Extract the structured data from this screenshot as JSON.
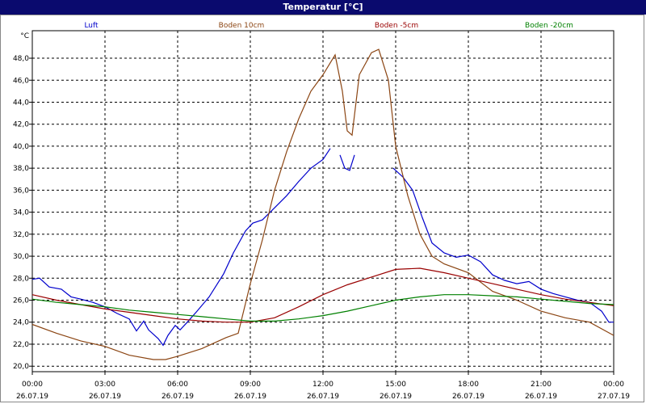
{
  "title": "Temperatur [°C]",
  "chart_data": {
    "type": "line",
    "unit_label": "°C",
    "ylim": [
      19.5,
      50.5
    ],
    "y_ticks": [
      "20,0",
      "22,0",
      "24,0",
      "26,0",
      "28,0",
      "30,0",
      "32,0",
      "34,0",
      "36,0",
      "38,0",
      "40,0",
      "42,0",
      "44,0",
      "46,0",
      "48,0"
    ],
    "y_tick_values": [
      20,
      22,
      24,
      26,
      28,
      30,
      32,
      34,
      36,
      38,
      40,
      42,
      44,
      46,
      48
    ],
    "x_range_hours": [
      0,
      24
    ],
    "x_ticks": [
      {
        "time": "00:00",
        "date": "26.07.19",
        "h": 0
      },
      {
        "time": "03:00",
        "date": "26.07.19",
        "h": 3
      },
      {
        "time": "06:00",
        "date": "26.07.19",
        "h": 6
      },
      {
        "time": "09:00",
        "date": "26.07.19",
        "h": 9
      },
      {
        "time": "12:00",
        "date": "26.07.19",
        "h": 12
      },
      {
        "time": "15:00",
        "date": "26.07.19",
        "h": 15
      },
      {
        "time": "18:00",
        "date": "26.07.19",
        "h": 18
      },
      {
        "time": "21:00",
        "date": "26.07.19",
        "h": 21
      },
      {
        "time": "00:00",
        "date": "27.07.19",
        "h": 24
      }
    ],
    "grid": true,
    "series": [
      {
        "name": "Luft",
        "color": "#0000cc",
        "segments": [
          [
            [
              0,
              27.9
            ],
            [
              0.3,
              28.0
            ],
            [
              0.7,
              27.2
            ],
            [
              1.2,
              27.0
            ],
            [
              1.6,
              26.3
            ],
            [
              2.0,
              26.1
            ],
            [
              2.5,
              25.8
            ],
            [
              3.0,
              25.4
            ],
            [
              3.5,
              24.8
            ],
            [
              4.0,
              24.3
            ],
            [
              4.3,
              23.2
            ],
            [
              4.6,
              24.1
            ],
            [
              4.8,
              23.3
            ],
            [
              5.2,
              22.5
            ],
            [
              5.4,
              21.9
            ],
            [
              5.6,
              22.8
            ],
            [
              5.9,
              23.7
            ],
            [
              6.1,
              23.3
            ],
            [
              6.4,
              24.0
            ],
            [
              6.8,
              25.0
            ],
            [
              7.3,
              26.3
            ],
            [
              7.9,
              28.4
            ],
            [
              8.3,
              30.3
            ],
            [
              8.8,
              32.3
            ],
            [
              9.1,
              33.0
            ],
            [
              9.5,
              33.3
            ],
            [
              10.0,
              34.4
            ],
            [
              10.5,
              35.5
            ],
            [
              11.0,
              36.8
            ],
            [
              11.5,
              38.0
            ],
            [
              12.0,
              38.8
            ],
            [
              12.3,
              39.8
            ]
          ],
          [
            [
              12.7,
              39.2
            ],
            [
              12.9,
              38.0
            ],
            [
              13.1,
              37.8
            ],
            [
              13.3,
              39.2
            ]
          ],
          [
            [
              14.9,
              38.0
            ],
            [
              15.3,
              37.2
            ],
            [
              15.7,
              36.0
            ],
            [
              16.1,
              33.5
            ],
            [
              16.5,
              31.2
            ],
            [
              17.0,
              30.3
            ],
            [
              17.5,
              29.9
            ],
            [
              18.0,
              30.1
            ],
            [
              18.5,
              29.5
            ],
            [
              19.0,
              28.3
            ],
            [
              19.5,
              27.8
            ],
            [
              20.0,
              27.5
            ],
            [
              20.5,
              27.7
            ],
            [
              21.0,
              27.0
            ],
            [
              21.5,
              26.6
            ],
            [
              22.0,
              26.3
            ],
            [
              22.5,
              26.0
            ],
            [
              23.0,
              25.8
            ],
            [
              23.5,
              25.0
            ],
            [
              23.8,
              24.0
            ],
            [
              24.0,
              24.0
            ]
          ]
        ]
      },
      {
        "name": "Boden 10cm",
        "color": "#8b4513",
        "segments": [
          [
            [
              0,
              23.8
            ],
            [
              1,
              23.0
            ],
            [
              2,
              22.3
            ],
            [
              3,
              21.8
            ],
            [
              4,
              21.0
            ],
            [
              5,
              20.6
            ],
            [
              5.5,
              20.6
            ],
            [
              6,
              20.9
            ],
            [
              7,
              21.6
            ],
            [
              8,
              22.6
            ],
            [
              8.5,
              23.0
            ],
            [
              9.0,
              27.5
            ],
            [
              9.5,
              31.5
            ],
            [
              10,
              36.0
            ],
            [
              10.5,
              39.5
            ],
            [
              11,
              42.5
            ],
            [
              11.5,
              45.0
            ],
            [
              12.0,
              46.5
            ],
            [
              12.5,
              48.3
            ],
            [
              12.8,
              45.0
            ],
            [
              13.0,
              41.4
            ],
            [
              13.2,
              41.0
            ],
            [
              13.5,
              46.5
            ],
            [
              14.0,
              48.5
            ],
            [
              14.3,
              48.8
            ],
            [
              14.7,
              46.0
            ],
            [
              15.0,
              40.0
            ],
            [
              15.5,
              35.5
            ],
            [
              16.0,
              32.0
            ],
            [
              16.5,
              30.0
            ],
            [
              17,
              29.3
            ],
            [
              18,
              28.5
            ],
            [
              19,
              26.8
            ],
            [
              20,
              26.0
            ],
            [
              21,
              25.0
            ],
            [
              22,
              24.4
            ],
            [
              23,
              24.0
            ],
            [
              24,
              22.8
            ]
          ]
        ]
      },
      {
        "name": "Boden -5cm",
        "color": "#990000",
        "segments": [
          [
            [
              0,
              26.5
            ],
            [
              1,
              26.0
            ],
            [
              2,
              25.6
            ],
            [
              3,
              25.2
            ],
            [
              4,
              24.9
            ],
            [
              5,
              24.6
            ],
            [
              6,
              24.3
            ],
            [
              7,
              24.1
            ],
            [
              8,
              24.0
            ],
            [
              9,
              24.0
            ],
            [
              10,
              24.4
            ],
            [
              11,
              25.4
            ],
            [
              12,
              26.5
            ],
            [
              13,
              27.4
            ],
            [
              14,
              28.1
            ],
            [
              15,
              28.8
            ],
            [
              16,
              28.9
            ],
            [
              17,
              28.5
            ],
            [
              18,
              28.0
            ],
            [
              19,
              27.5
            ],
            [
              20,
              27.0
            ],
            [
              21,
              26.5
            ],
            [
              22,
              26.1
            ],
            [
              23,
              25.8
            ],
            [
              24,
              25.5
            ]
          ]
        ]
      },
      {
        "name": "Boden -20cm",
        "color": "#008000",
        "segments": [
          [
            [
              0,
              26.1
            ],
            [
              1,
              25.8
            ],
            [
              2,
              25.6
            ],
            [
              3,
              25.4
            ],
            [
              4,
              25.1
            ],
            [
              5,
              24.9
            ],
            [
              6,
              24.7
            ],
            [
              7,
              24.5
            ],
            [
              8,
              24.3
            ],
            [
              9,
              24.1
            ],
            [
              10,
              24.1
            ],
            [
              11,
              24.3
            ],
            [
              12,
              24.6
            ],
            [
              13,
              25.0
            ],
            [
              14,
              25.5
            ],
            [
              15,
              26.0
            ],
            [
              16,
              26.3
            ],
            [
              17,
              26.5
            ],
            [
              18,
              26.5
            ],
            [
              19,
              26.4
            ],
            [
              20,
              26.3
            ],
            [
              21,
              26.1
            ],
            [
              22,
              25.9
            ],
            [
              23,
              25.7
            ],
            [
              24,
              25.6
            ]
          ]
        ]
      }
    ]
  }
}
